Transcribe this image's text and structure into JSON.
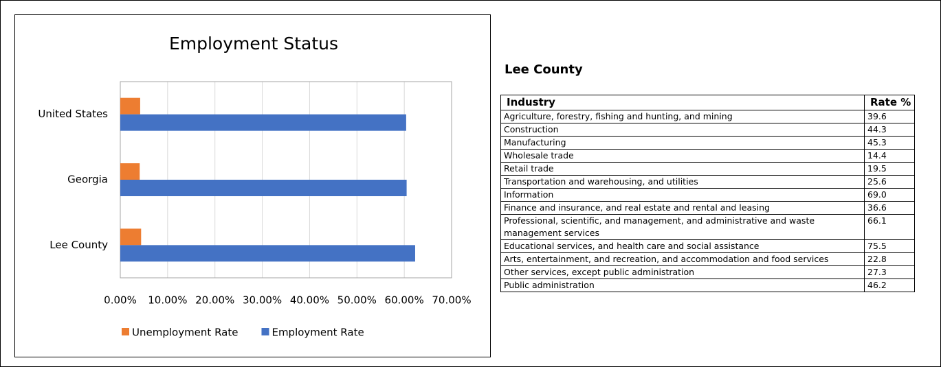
{
  "chart_data": {
    "type": "bar",
    "orientation": "horizontal",
    "title": "Employment Status",
    "categories": [
      "United States",
      "Georgia",
      "Lee County"
    ],
    "series": [
      {
        "name": "Unemployment Rate",
        "color": "#ed7d31",
        "values": [
          4.2,
          4.1,
          4.4
        ]
      },
      {
        "name": "Employment Rate",
        "color": "#4472c4",
        "values": [
          60.4,
          60.5,
          62.3
        ]
      }
    ],
    "xlim": [
      0,
      70
    ],
    "xticks": [
      {
        "value": 0,
        "label": "0.00%"
      },
      {
        "value": 10,
        "label": "10.00%"
      },
      {
        "value": 20,
        "label": "20.00%"
      },
      {
        "value": 30,
        "label": "30.00%"
      },
      {
        "value": 40,
        "label": "40.00%"
      },
      {
        "value": 50,
        "label": "50.00%"
      },
      {
        "value": 60,
        "label": "60.00%"
      },
      {
        "value": 70,
        "label": "70.00%"
      }
    ],
    "grid": true,
    "legend": "bottom"
  },
  "table": {
    "title": "Lee County",
    "header": [
      "Industry",
      "Rate %"
    ],
    "rows": [
      [
        "Agriculture, forestry, fishing and hunting, and mining",
        "39.6"
      ],
      [
        "Construction",
        "44.3"
      ],
      [
        "Manufacturing",
        "45.3"
      ],
      [
        "Wholesale trade",
        "14.4"
      ],
      [
        "Retail trade",
        "19.5"
      ],
      [
        "Transportation and warehousing, and utilities",
        "25.6"
      ],
      [
        "Information",
        "69.0"
      ],
      [
        "Finance and insurance, and real estate and rental and leasing",
        "36.6"
      ],
      [
        "Professional, scientific, and management, and administrative and waste management services",
        "66.1"
      ],
      [
        "Educational services, and health care and social assistance",
        "75.5"
      ],
      [
        "Arts, entertainment, and recreation, and accommodation and food services",
        "22.8"
      ],
      [
        "Other services, except public administration",
        "27.3"
      ],
      [
        "Public administration",
        "46.2"
      ]
    ]
  }
}
